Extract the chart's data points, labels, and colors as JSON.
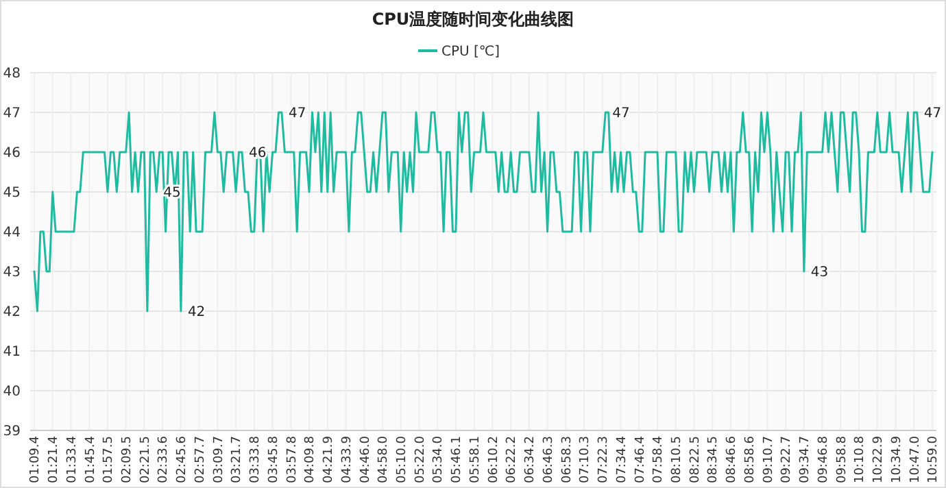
{
  "chart_data": {
    "type": "line",
    "title": "CPU温度随时间变化曲线图",
    "legend": "top",
    "grid": true,
    "marker": "none",
    "line_style": "solid",
    "categories": [
      "01:09.4",
      null,
      null,
      null,
      null,
      null,
      "01:21.4",
      null,
      null,
      null,
      null,
      null,
      "01:33.4",
      null,
      null,
      null,
      null,
      null,
      "01:45.4",
      null,
      null,
      null,
      null,
      null,
      "01:57.5",
      null,
      null,
      null,
      null,
      null,
      "02:09.5",
      null,
      null,
      null,
      null,
      null,
      "02:21.5",
      null,
      null,
      null,
      null,
      null,
      "02:33.6",
      null,
      null,
      null,
      null,
      null,
      "02:45.6",
      null,
      null,
      null,
      null,
      null,
      "02:57.7",
      null,
      null,
      null,
      null,
      null,
      "03:09.7",
      null,
      null,
      null,
      null,
      null,
      "03:21.7",
      null,
      null,
      null,
      null,
      null,
      "03:33.8",
      null,
      null,
      null,
      null,
      null,
      "03:45.8",
      null,
      null,
      null,
      null,
      null,
      "03:57.8",
      null,
      null,
      null,
      null,
      null,
      "04:09.8",
      null,
      null,
      null,
      null,
      null,
      "04:21.9",
      null,
      null,
      null,
      null,
      null,
      "04:33.9",
      null,
      null,
      null,
      null,
      null,
      "04:46.0",
      null,
      null,
      null,
      null,
      null,
      "04:58.0",
      null,
      null,
      null,
      null,
      null,
      "05:10.0",
      null,
      null,
      null,
      null,
      null,
      "05:22.0",
      null,
      null,
      null,
      null,
      null,
      "05:34.0",
      null,
      null,
      null,
      null,
      null,
      "05:46.1",
      null,
      null,
      null,
      null,
      null,
      "05:58.1",
      null,
      null,
      null,
      null,
      null,
      "06:10.2",
      null,
      null,
      null,
      null,
      null,
      "06:22.2",
      null,
      null,
      null,
      null,
      null,
      "06:34.2",
      null,
      null,
      null,
      null,
      null,
      "06:46.3",
      null,
      null,
      null,
      null,
      null,
      "06:58.3",
      null,
      null,
      null,
      null,
      null,
      "07:10.3",
      null,
      null,
      null,
      null,
      null,
      "07:22.3",
      null,
      null,
      null,
      null,
      null,
      "07:34.4",
      null,
      null,
      null,
      null,
      null,
      "07:46.4",
      null,
      null,
      null,
      null,
      null,
      "07:58.4",
      null,
      null,
      null,
      null,
      null,
      "08:10.5",
      null,
      null,
      null,
      null,
      null,
      "08:22.5",
      null,
      null,
      null,
      null,
      null,
      "08:34.5",
      null,
      null,
      null,
      null,
      null,
      "08:46.6",
      null,
      null,
      null,
      null,
      null,
      "08:58.6",
      null,
      null,
      null,
      null,
      null,
      "09:10.7",
      null,
      null,
      null,
      null,
      null,
      "09:22.7",
      null,
      null,
      null,
      null,
      null,
      "09:34.7",
      null,
      null,
      null,
      null,
      null,
      "09:46.8",
      null,
      null,
      null,
      null,
      null,
      "09:58.8",
      null,
      null,
      null,
      null,
      null,
      "10:10.8",
      null,
      null,
      null,
      null,
      null,
      "10:22.9",
      null,
      null,
      null,
      null,
      null,
      "10:34.9",
      null,
      null,
      null,
      null,
      null,
      "10:47.0",
      null,
      null,
      null,
      null,
      null,
      "10:59.0"
    ],
    "series": [
      {
        "name": "CPU [℃]",
        "color": "#1fbba0",
        "values": [
          43,
          42,
          44,
          44,
          43,
          43,
          45,
          44,
          44,
          44,
          44,
          44,
          44,
          44,
          45,
          45,
          46,
          46,
          46,
          46,
          46,
          46,
          46,
          46,
          45,
          46,
          46,
          45,
          46,
          46,
          46,
          47,
          45,
          46,
          45,
          46,
          46,
          42,
          46,
          46,
          45,
          46,
          46,
          44,
          46,
          46,
          45,
          46,
          42,
          46,
          46,
          44,
          46,
          44,
          44,
          44,
          46,
          46,
          46,
          47,
          46,
          46,
          45,
          46,
          46,
          46,
          45,
          46,
          46,
          45,
          45,
          44,
          44,
          46,
          46,
          44,
          46,
          45,
          46,
          46,
          47,
          47,
          46,
          46,
          46,
          46,
          44,
          46,
          46,
          46,
          45,
          47,
          46,
          47,
          45,
          47,
          45,
          47,
          45,
          46,
          46,
          46,
          46,
          44,
          46,
          46,
          47,
          47,
          46,
          45,
          45,
          46,
          45,
          46,
          47,
          47,
          45,
          46,
          46,
          46,
          44,
          46,
          45,
          46,
          45,
          47,
          46,
          46,
          46,
          46,
          47,
          47,
          46,
          46,
          44,
          46,
          46,
          44,
          44,
          47,
          46,
          47,
          47,
          45,
          46,
          46,
          46,
          47,
          46,
          46,
          46,
          46,
          45,
          46,
          45,
          45,
          46,
          45,
          45,
          46,
          46,
          46,
          46,
          45,
          45,
          47,
          45,
          46,
          44,
          46,
          46,
          45,
          45,
          44,
          44,
          44,
          44,
          46,
          46,
          44,
          46,
          46,
          44,
          46,
          46,
          46,
          46,
          47,
          47,
          45,
          46,
          45,
          46,
          45,
          46,
          46,
          45,
          45,
          44,
          44,
          46,
          46,
          46,
          46,
          46,
          44,
          44,
          46,
          46,
          46,
          46,
          44,
          44,
          46,
          45,
          46,
          45,
          46,
          46,
          46,
          46,
          45,
          46,
          46,
          46,
          45,
          46,
          45,
          46,
          44,
          46,
          46,
          47,
          46,
          46,
          44,
          46,
          45,
          47,
          46,
          47,
          46,
          44,
          46,
          45,
          44,
          46,
          46,
          44,
          46,
          46,
          47,
          43,
          46,
          46,
          46,
          46,
          46,
          46,
          47,
          46,
          47,
          46,
          45,
          47,
          47,
          46,
          45,
          47,
          47,
          46,
          44,
          44,
          46,
          46,
          46,
          47,
          46,
          46,
          46,
          47,
          46,
          46,
          46,
          45,
          46,
          47,
          45,
          47,
          47,
          46,
          45,
          45,
          45,
          46
        ],
        "value_labels": [
          null,
          null,
          null,
          null,
          null,
          null,
          null,
          null,
          null,
          null,
          null,
          null,
          null,
          null,
          null,
          null,
          null,
          null,
          null,
          null,
          null,
          null,
          null,
          null,
          null,
          null,
          null,
          null,
          null,
          null,
          null,
          null,
          null,
          null,
          null,
          null,
          null,
          null,
          null,
          null,
          "45",
          null,
          null,
          null,
          null,
          null,
          null,
          null,
          "42",
          null,
          null,
          null,
          null,
          null,
          null,
          null,
          null,
          null,
          null,
          null,
          null,
          null,
          null,
          null,
          null,
          null,
          null,
          null,
          "46",
          null,
          null,
          null,
          null,
          null,
          null,
          null,
          null,
          null,
          null,
          null,
          null,
          "47",
          null,
          null,
          null,
          null,
          null,
          null,
          null,
          null,
          null,
          null,
          null,
          null,
          null,
          null,
          null,
          null,
          null,
          null,
          null,
          null,
          null,
          null,
          null,
          null,
          null,
          null,
          null,
          null,
          null,
          null,
          null,
          null,
          null,
          null,
          null,
          null,
          null,
          null,
          null,
          null,
          null,
          null,
          null,
          null,
          null,
          null,
          null,
          null,
          null,
          null,
          null,
          null,
          null,
          null,
          null,
          null,
          null,
          null,
          null,
          null,
          null,
          null,
          null,
          null,
          null,
          null,
          null,
          null,
          null,
          null,
          null,
          null,
          null,
          null,
          null,
          null,
          null,
          null,
          null,
          null,
          null,
          null,
          null,
          null,
          null,
          null,
          null,
          null,
          null,
          null,
          null,
          null,
          null,
          null,
          null,
          null,
          null,
          null,
          null,
          null,
          null,
          null,
          null,
          null,
          null,
          "47",
          null,
          null,
          null,
          null,
          null,
          null,
          null,
          null,
          null,
          null,
          null,
          null,
          null,
          null,
          null,
          null,
          null,
          null,
          null,
          null,
          null,
          null,
          null,
          null,
          null,
          null,
          null,
          null,
          null,
          null,
          null,
          null,
          null,
          null,
          null,
          null,
          null,
          null,
          null,
          null,
          null,
          null,
          null,
          null,
          null,
          null,
          null,
          null,
          null,
          null,
          null,
          null,
          null,
          null,
          null,
          null,
          null,
          null,
          null,
          null,
          null,
          null,
          null,
          null,
          "43",
          null,
          null,
          null,
          null,
          null,
          null,
          null,
          null,
          null,
          null,
          null,
          null,
          null,
          null,
          null,
          null,
          null,
          null,
          null,
          null,
          null,
          null,
          null,
          null,
          null,
          null,
          null,
          null,
          null,
          null,
          null,
          null,
          null,
          null,
          null,
          null,
          "47",
          null,
          null,
          null,
          null,
          null
        ]
      }
    ],
    "ylim": [
      39,
      48
    ],
    "yticks": [
      39,
      40,
      41,
      42,
      43,
      44,
      45,
      46,
      47,
      48
    ]
  }
}
